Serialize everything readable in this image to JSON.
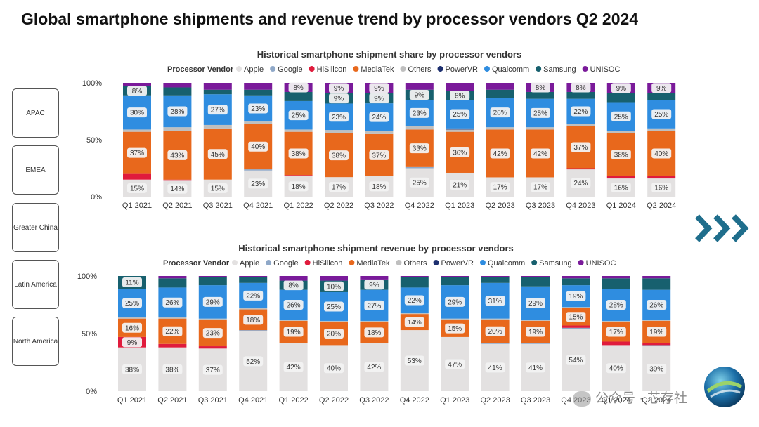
{
  "title": "Global smartphone shipments and revenue trend by processor vendors Q2 2024",
  "regions": [
    "APAC",
    "EMEA",
    "Greater China",
    "Latin America",
    "North America"
  ],
  "watermark": "公众号 · 芯存社",
  "icons": {
    "arrows": "triple-chevron-right-icon",
    "logo": "globe-logo-icon",
    "watermark": "wechat-icon"
  },
  "colors": {
    "Apple": "#e3e1e1",
    "Google": "#8fa8c8",
    "HiSilicon": "#e01b3c",
    "MediaTek": "#e8681c",
    "Others": "#bfbfbf",
    "PowerVR": "#1d2f6f",
    "Qualcomm": "#2f8de0",
    "Samsung": "#17606e",
    "UNISOC": "#7a1a9a",
    "arrows": "#1f6e8c"
  },
  "chart_data": [
    {
      "type": "bar",
      "stacked": true,
      "title": "Historical smartphone shipment share by processor vendors",
      "legend_title": "Processor Vendor",
      "legend_position": "top",
      "categories": [
        "Q1 2021",
        "Q2 2021",
        "Q3 2021",
        "Q4 2021",
        "Q1 2022",
        "Q2 2022",
        "Q3 2022",
        "Q4 2022",
        "Q1 2023",
        "Q2 2023",
        "Q3 2023",
        "Q4 2023",
        "Q1 2024",
        "Q2 2024"
      ],
      "yticks": [
        "0%",
        "50%",
        "100%"
      ],
      "ylim": [
        0,
        100
      ],
      "series": [
        {
          "name": "Apple",
          "values": [
            15,
            14,
            15,
            23,
            18,
            17,
            18,
            25,
            21,
            17,
            17,
            24,
            16,
            16
          ]
        },
        {
          "name": "Google",
          "values": [
            0,
            0,
            0,
            1,
            0,
            0,
            0,
            1,
            0,
            0,
            0,
            0,
            0,
            0
          ]
        },
        {
          "name": "HiSilicon",
          "values": [
            5,
            1,
            0,
            0,
            1,
            0,
            0,
            0,
            0,
            0,
            0,
            1,
            2,
            2
          ]
        },
        {
          "name": "MediaTek",
          "values": [
            37,
            43,
            45,
            40,
            38,
            38,
            37,
            33,
            36,
            42,
            42,
            37,
            38,
            40
          ]
        },
        {
          "name": "Others",
          "values": [
            2,
            3,
            3,
            2,
            2,
            3,
            3,
            3,
            2,
            2,
            2,
            2,
            2,
            2
          ]
        },
        {
          "name": "PowerVR",
          "values": [
            0,
            0,
            0,
            0,
            0,
            0,
            0,
            0,
            1,
            0,
            0,
            0,
            0,
            0
          ]
        },
        {
          "name": "Qualcomm",
          "values": [
            30,
            28,
            27,
            23,
            25,
            23,
            24,
            23,
            25,
            26,
            25,
            22,
            25,
            25
          ]
        },
        {
          "name": "Samsung",
          "values": [
            8,
            7,
            4,
            5,
            8,
            9,
            9,
            9,
            8,
            7,
            6,
            6,
            8,
            6
          ]
        },
        {
          "name": "UNISOC",
          "values": [
            3,
            4,
            6,
            6,
            8,
            9,
            9,
            6,
            7,
            6,
            8,
            8,
            9,
            9
          ]
        }
      ],
      "labels": [
        {
          "series": "Apple",
          "values": [
            "15%",
            "14%",
            "15%",
            "23%",
            "18%",
            "17%",
            "18%",
            "25%",
            "21%",
            "17%",
            "17%",
            "24%",
            "16%",
            "16%"
          ]
        },
        {
          "series": "MediaTek",
          "values": [
            "37%",
            "43%",
            "45%",
            "40%",
            "38%",
            "38%",
            "37%",
            "33%",
            "36%",
            "42%",
            "42%",
            "37%",
            "38%",
            "40%"
          ]
        },
        {
          "series": "Qualcomm",
          "values": [
            "30%",
            "28%",
            "27%",
            "23%",
            "25%",
            "23%",
            "24%",
            "23%",
            "25%",
            "26%",
            "25%",
            "22%",
            "25%",
            "25%"
          ]
        },
        {
          "series": "Samsung",
          "values": [
            "8%",
            "",
            "",
            "",
            "",
            "9%",
            "9%",
            "9%",
            "8%",
            "",
            "",
            "",
            "",
            ""
          ]
        },
        {
          "series": "UNISOC",
          "values": [
            "",
            "",
            "",
            "",
            "8%",
            "9%",
            "9%",
            "",
            "",
            "",
            "8%",
            "8%",
            "9%",
            "9%"
          ]
        }
      ]
    },
    {
      "type": "bar",
      "stacked": true,
      "title": "Historical smartphone shipment revenue by processor vendors",
      "legend_title": "Processor Vendor",
      "legend_position": "top",
      "categories": [
        "Q1 2021",
        "Q2 2021",
        "Q3 2021",
        "Q4 2021",
        "Q1 2022",
        "Q2 2022",
        "Q3 2022",
        "Q4 2022",
        "Q1 2023",
        "Q2 2023",
        "Q3 2023",
        "Q4 2023",
        "Q1 2024",
        "Q2 2024"
      ],
      "yticks": [
        "0%",
        "50%",
        "100%"
      ],
      "ylim": [
        0,
        100
      ],
      "series": [
        {
          "name": "Apple",
          "values": [
            38,
            38,
            37,
            52,
            42,
            40,
            42,
            53,
            47,
            41,
            41,
            54,
            40,
            39
          ]
        },
        {
          "name": "Google",
          "values": [
            0,
            0,
            0,
            1,
            0,
            0,
            0,
            0,
            0,
            1,
            1,
            1,
            0,
            1
          ]
        },
        {
          "name": "HiSilicon",
          "values": [
            9,
            3,
            2,
            0,
            0,
            0,
            0,
            0,
            0,
            0,
            0,
            2,
            3,
            2
          ]
        },
        {
          "name": "MediaTek",
          "values": [
            16,
            22,
            23,
            18,
            19,
            20,
            18,
            14,
            15,
            20,
            19,
            15,
            17,
            19
          ]
        },
        {
          "name": "Others",
          "values": [
            1,
            1,
            1,
            1,
            1,
            1,
            1,
            1,
            1,
            1,
            1,
            1,
            1,
            1
          ]
        },
        {
          "name": "PowerVR",
          "values": [
            0,
            0,
            0,
            0,
            0,
            0,
            0,
            0,
            0,
            0,
            0,
            0,
            0,
            0
          ]
        },
        {
          "name": "Qualcomm",
          "values": [
            25,
            26,
            29,
            22,
            26,
            25,
            27,
            22,
            29,
            31,
            29,
            19,
            28,
            26
          ]
        },
        {
          "name": "Samsung",
          "values": [
            11,
            8,
            7,
            5,
            8,
            10,
            9,
            9,
            7,
            5,
            8,
            6,
            9,
            10
          ]
        },
        {
          "name": "UNISOC",
          "values": [
            0,
            2,
            1,
            1,
            4,
            4,
            3,
            1,
            1,
            1,
            1,
            2,
            2,
            2
          ]
        }
      ],
      "labels": [
        {
          "series": "Apple",
          "values": [
            "38%",
            "38%",
            "37%",
            "52%",
            "42%",
            "40%",
            "42%",
            "53%",
            "47%",
            "41%",
            "41%",
            "54%",
            "40%",
            "39%"
          ]
        },
        {
          "series": "HiSilicon",
          "values": [
            "9%",
            "",
            "",
            "",
            "",
            "",
            "",
            "",
            "",
            "",
            "",
            "",
            "",
            ""
          ]
        },
        {
          "series": "MediaTek",
          "values": [
            "16%",
            "22%",
            "23%",
            "18%",
            "19%",
            "20%",
            "18%",
            "14%",
            "15%",
            "20%",
            "19%",
            "15%",
            "17%",
            "19%"
          ]
        },
        {
          "series": "Qualcomm",
          "values": [
            "25%",
            "26%",
            "29%",
            "22%",
            "26%",
            "25%",
            "27%",
            "22%",
            "29%",
            "31%",
            "29%",
            "19%",
            "28%",
            "26%"
          ]
        },
        {
          "series": "Samsung",
          "values": [
            "11%",
            "",
            "",
            "",
            "8%",
            "10%",
            "9%",
            "",
            "",
            "",
            "",
            "",
            "",
            ""
          ]
        }
      ]
    }
  ]
}
